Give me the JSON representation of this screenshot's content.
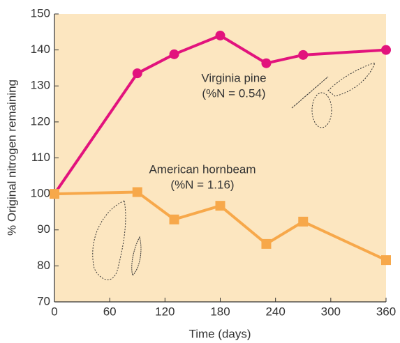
{
  "chart_data": {
    "type": "line",
    "x_label": "Time (days)",
    "y_label": "% Original nitrogen remaining",
    "series": [
      {
        "name": "Virginia pine",
        "color": "#e2137d",
        "marker": "circle",
        "x": [
          0,
          90,
          130,
          180,
          230,
          270,
          360
        ],
        "values": [
          100,
          133.5,
          138.8,
          144,
          136.3,
          138.6,
          140
        ]
      },
      {
        "name": "American hornbeam",
        "color": "#f7a84a",
        "marker": "square",
        "x": [
          0,
          90,
          130,
          180,
          230,
          270,
          360
        ],
        "values": [
          100,
          100.5,
          92.9,
          96.7,
          86.1,
          92.3,
          81.6
        ]
      }
    ],
    "annotations": [
      {
        "lines": [
          "Virginia pine",
          "(%N = 0.54)"
        ]
      },
      {
        "lines": [
          "American hornbeam",
          "(%N = 1.16)"
        ]
      }
    ],
    "xlim": [
      0,
      360
    ],
    "xticks": [
      0,
      60,
      120,
      180,
      240,
      300,
      360
    ],
    "ylim": [
      70,
      150
    ],
    "yticks": [
      70,
      80,
      90,
      100,
      110,
      120,
      130,
      140,
      150
    ]
  }
}
